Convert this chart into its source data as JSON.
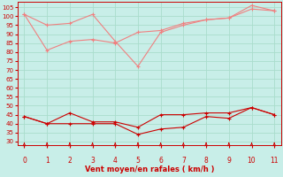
{
  "x": [
    0,
    1,
    2,
    3,
    4,
    5,
    6,
    7,
    8,
    9,
    10,
    11
  ],
  "line_light1": [
    101,
    95,
    96,
    101,
    86,
    72,
    91,
    95,
    98,
    99,
    106,
    103
  ],
  "line_light2": [
    101,
    81,
    86,
    87,
    85,
    91,
    92,
    96,
    98,
    99,
    104,
    103
  ],
  "line_dark1": [
    44,
    40,
    46,
    41,
    41,
    38,
    45,
    45,
    46,
    46,
    49,
    45
  ],
  "line_dark2": [
    44,
    40,
    40,
    40,
    40,
    34,
    37,
    38,
    44,
    43,
    49,
    45
  ],
  "bg_color": "#c8eee8",
  "grid_color": "#aaddcc",
  "line_light": "#f08080",
  "line_dark": "#cc0000",
  "xlabel": "Vent moyen/en rafales ( km/h )",
  "ylim": [
    28,
    108
  ],
  "xlim": [
    -0.3,
    11.3
  ],
  "yticks": [
    30,
    35,
    40,
    45,
    50,
    55,
    60,
    65,
    70,
    75,
    80,
    85,
    90,
    95,
    100,
    105
  ],
  "xticks": [
    0,
    1,
    2,
    3,
    4,
    5,
    6,
    7,
    8,
    9,
    10,
    11
  ],
  "yticklabels": [
    "30",
    "35",
    "40",
    "45",
    "50",
    "55",
    "60",
    "65",
    "70",
    "75",
    "80",
    "85",
    "90",
    "95",
    "100",
    "105"
  ]
}
